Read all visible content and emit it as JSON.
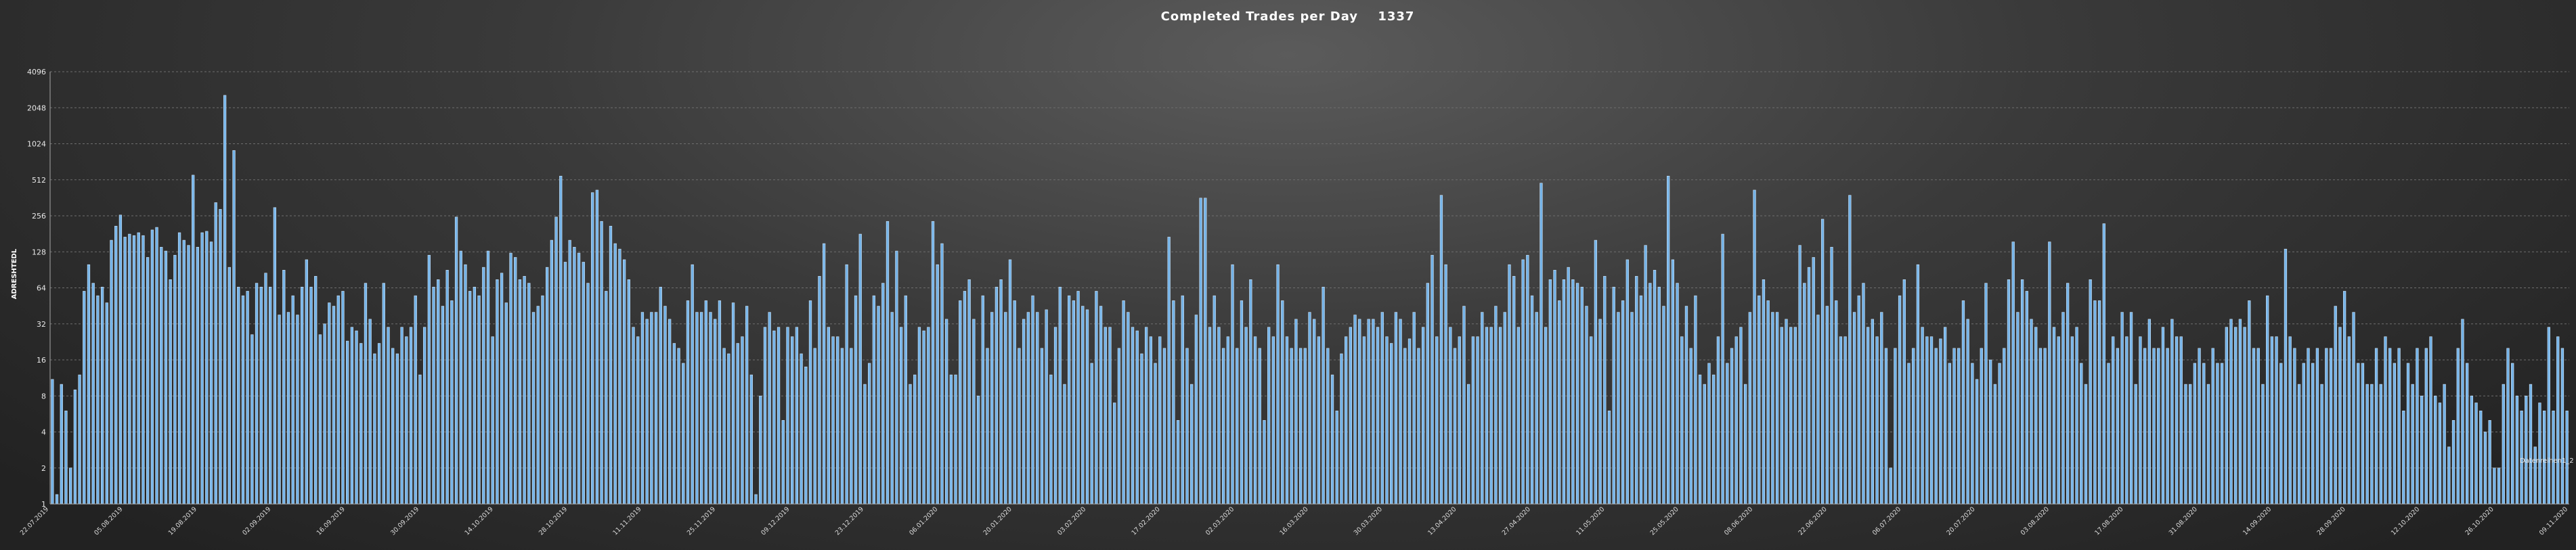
{
  "chart_data": {
    "type": "bar",
    "title": "Completed Trades per Day",
    "title_value": "1337",
    "ylabel": "ADRESHTEDL",
    "xlabel": "",
    "yscale": "log2",
    "ylim": [
      1,
      4096
    ],
    "yticks": [
      1,
      2,
      4,
      8,
      16,
      32,
      64,
      128,
      256,
      512,
      1024,
      2048,
      4096
    ],
    "grid": true,
    "legend": {
      "position": "bottom-right",
      "entry": "Datenreihen1_2"
    },
    "bar_color": "#74b3e8",
    "x_tick_labels": [
      "22.07.2019",
      "05.08.2019",
      "19.08.2019",
      "02.09.2019",
      "16.09.2019",
      "30.09.2019",
      "14.10.2019",
      "28.10.2019",
      "11.11.2019",
      "25.11.2019",
      "09.12.2019",
      "23.12.2019",
      "06.01.2020",
      "20.01.2020",
      "03.02.2020",
      "17.02.2020",
      "02.03.2020",
      "16.03.2020",
      "30.03.2020",
      "13.04.2020",
      "27.04.2020",
      "11.05.2020",
      "25.05.2020",
      "08.06.2020",
      "22.06.2020",
      "06.07.2020",
      "20.07.2020",
      "03.08.2020",
      "17.08.2020",
      "31.08.2020",
      "14.09.2020",
      "28.09.2020",
      "12.10.2020",
      "26.10.2020",
      "09.11.2020"
    ],
    "values": [
      11,
      1.2,
      10,
      6,
      2,
      9,
      12,
      60,
      100,
      70,
      55,
      65,
      48,
      160,
      210,
      260,
      170,
      180,
      175,
      185,
      175,
      115,
      195,
      205,
      140,
      130,
      75,
      120,
      185,
      160,
      145,
      560,
      140,
      185,
      190,
      155,
      330,
      290,
      2600,
      95,
      900,
      65,
      55,
      60,
      26,
      70,
      65,
      85,
      65,
      300,
      38,
      90,
      40,
      55,
      38,
      65,
      110,
      65,
      80,
      26,
      32,
      48,
      45,
      55,
      60,
      23,
      30,
      28,
      22,
      70,
      35,
      18,
      22,
      70,
      30,
      20,
      18,
      30,
      25,
      30,
      55,
      12,
      30,
      120,
      65,
      75,
      45,
      90,
      50,
      250,
      130,
      100,
      60,
      65,
      55,
      95,
      130,
      25,
      75,
      85,
      48,
      125,
      115,
      75,
      80,
      70,
      40,
      45,
      55,
      95,
      160,
      250,
      550,
      105,
      160,
      140,
      125,
      105,
      70,
      400,
      420,
      230,
      60,
      210,
      150,
      135,
      110,
      75,
      30,
      25,
      40,
      35,
      40,
      40,
      65,
      45,
      35,
      22,
      20,
      15,
      50,
      100,
      40,
      40,
      50,
      40,
      35,
      50,
      20,
      18,
      48,
      22,
      25,
      45,
      12,
      1.2,
      8,
      30,
      40,
      28,
      30,
      5,
      30,
      25,
      30,
      18,
      14,
      50,
      20,
      80,
      150,
      30,
      25,
      25,
      20,
      100,
      20,
      55,
      180,
      10,
      15,
      55,
      45,
      70,
      230,
      40,
      130,
      30,
      55,
      10,
      12,
      30,
      28,
      30,
      230,
      100,
      150,
      35,
      12,
      12,
      50,
      60,
      75,
      35,
      8,
      55,
      20,
      40,
      65,
      75,
      40,
      110,
      50,
      20,
      35,
      40,
      55,
      40,
      20,
      42,
      12,
      30,
      65,
      10,
      55,
      50,
      60,
      45,
      42,
      15,
      60,
      45,
      30,
      30,
      7,
      20,
      50,
      40,
      30,
      28,
      18,
      30,
      25,
      15,
      25,
      20,
      170,
      50,
      5,
      55,
      20,
      10,
      38,
      360,
      360,
      30,
      55,
      30,
      20,
      25,
      100,
      20,
      50,
      30,
      75,
      25,
      20,
      5,
      30,
      25,
      100,
      50,
      25,
      20,
      35,
      20,
      20,
      40,
      35,
      25,
      65,
      20,
      12,
      6,
      18,
      25,
      30,
      38,
      35,
      25,
      35,
      35,
      30,
      40,
      25,
      22,
      40,
      35,
      20,
      24,
      40,
      20,
      30,
      70,
      120,
      25,
      380,
      100,
      30,
      20,
      25,
      45,
      10,
      25,
      25,
      40,
      30,
      30,
      45,
      30,
      40,
      100,
      80,
      30,
      110,
      120,
      55,
      40,
      480,
      30,
      75,
      90,
      50,
      75,
      95,
      75,
      70,
      65,
      45,
      25,
      160,
      35,
      80,
      6,
      65,
      40,
      50,
      110,
      40,
      80,
      55,
      145,
      70,
      90,
      65,
      45,
      550,
      110,
      70,
      25,
      45,
      20,
      55,
      12,
      10,
      15,
      12,
      25,
      180,
      15,
      20,
      25,
      30,
      10,
      40,
      420,
      55,
      75,
      50,
      40,
      40,
      30,
      35,
      30,
      30,
      145,
      70,
      95,
      115,
      38,
      240,
      45,
      140,
      50,
      25,
      25,
      380,
      40,
      55,
      70,
      30,
      35,
      25,
      40,
      20,
      2,
      20,
      55,
      75,
      15,
      20,
      100,
      30,
      25,
      25,
      20,
      24,
      30,
      15,
      20,
      20,
      50,
      35,
      15,
      11,
      20,
      70,
      16,
      10,
      15,
      20,
      75,
      155,
      40,
      75,
      60,
      35,
      30,
      20,
      20,
      155,
      30,
      25,
      40,
      70,
      25,
      30,
      15,
      10,
      75,
      50,
      50,
      220,
      15,
      25,
      20,
      40,
      25,
      40,
      10,
      25,
      20,
      35,
      20,
      20,
      30,
      20,
      35,
      25,
      25,
      10,
      10,
      15,
      20,
      15,
      10,
      20,
      15,
      15,
      30,
      35,
      30,
      35,
      30,
      50,
      20,
      20,
      10,
      55,
      25,
      25,
      15,
      135,
      25,
      20,
      10,
      15,
      20,
      15,
      20,
      10,
      20,
      20,
      45,
      30,
      60,
      25,
      40,
      15,
      15,
      10,
      10,
      20,
      10,
      25,
      20,
      15,
      20,
      6,
      15,
      10,
      20,
      8,
      20,
      25,
      8,
      7,
      10,
      3,
      5,
      20,
      35,
      15,
      8,
      7,
      6,
      4,
      5,
      2,
      2,
      10,
      20,
      15,
      8,
      6,
      8,
      10,
      3,
      7,
      6,
      30,
      6,
      25,
      20,
      6
    ]
  }
}
